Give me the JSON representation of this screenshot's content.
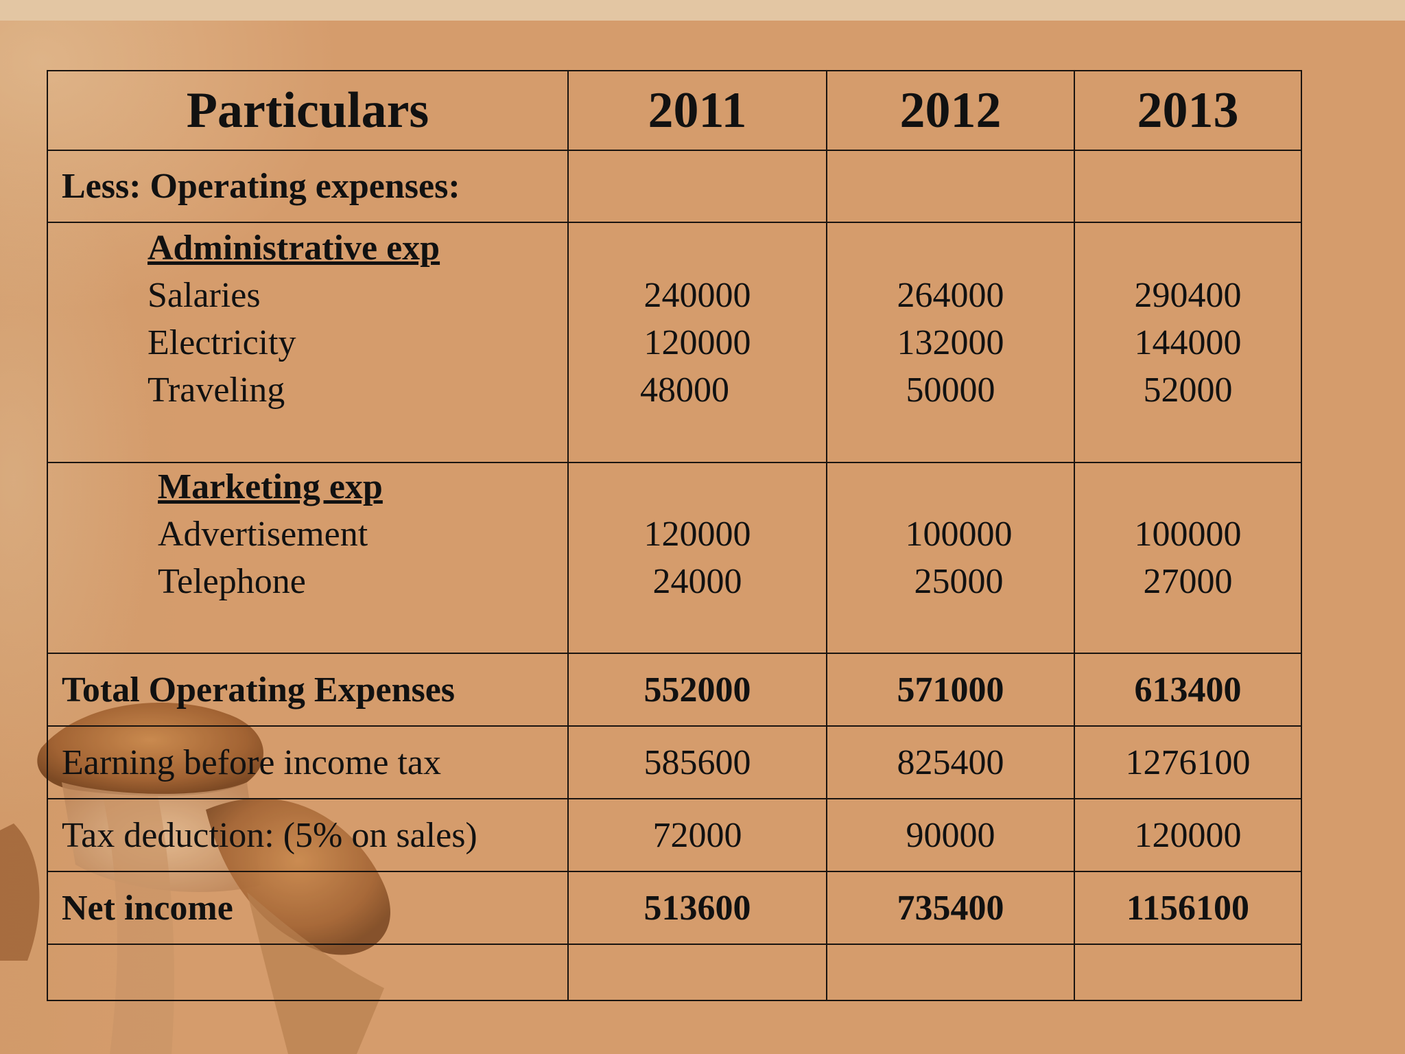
{
  "table": {
    "header": {
      "particulars": "Particulars",
      "years": [
        "2011",
        "2012",
        "2013"
      ]
    },
    "less_label": "Less: Operating expenses:",
    "admin": {
      "heading": "Administrative exp",
      "items": [
        {
          "label": "Salaries",
          "values": [
            "240000",
            "264000",
            "290400"
          ]
        },
        {
          "label": "Electricity",
          "values": [
            "120000",
            "132000",
            "144000"
          ]
        },
        {
          "label": "Traveling",
          "values": [
            "48000",
            "50000",
            "52000"
          ]
        }
      ]
    },
    "marketing": {
      "heading": "Marketing exp",
      "items": [
        {
          "label": "Advertisement",
          "values": [
            "120000",
            "100000",
            "100000"
          ]
        },
        {
          "label": "Telephone",
          "values": [
            "24000",
            "25000",
            "27000"
          ]
        }
      ]
    },
    "total": {
      "label": "Total Operating Expenses",
      "values": [
        "552000",
        "571000",
        "613400"
      ]
    },
    "ebit": {
      "label": "Earning before income tax",
      "values": [
        "585600",
        "825400",
        "1276100"
      ]
    },
    "tax": {
      "label": "Tax deduction: (5% on sales)",
      "values": [
        "72000",
        "90000",
        "120000"
      ]
    },
    "net": {
      "label": "Net income",
      "values": [
        "513600",
        "735400",
        "1156100"
      ]
    }
  }
}
